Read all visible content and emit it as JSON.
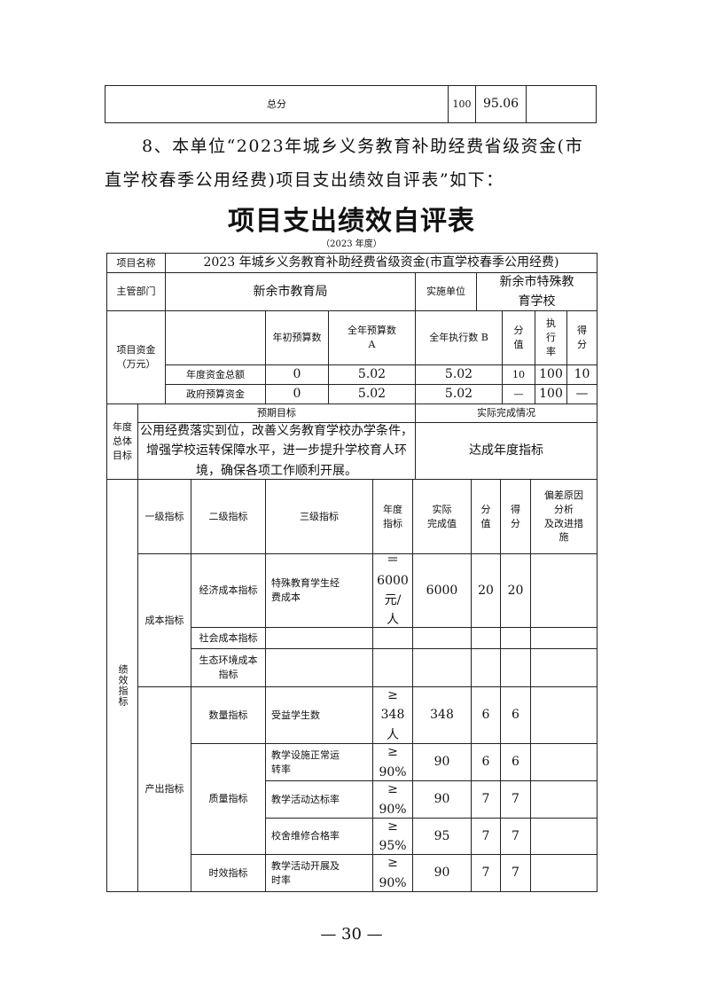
{
  "summary_table": {
    "label": "总分",
    "score_value": "100",
    "score_obtained": "95.06",
    "remark": ""
  },
  "paragraph": {
    "line1": "8、本单位“2023年城乡义务教育补助经费省级资金(市",
    "line2": "直学校春季公用经费)项目支出绩效自评表”如下："
  },
  "title": "项目支出绩效自评表",
  "year_label": "（2023 年度）",
  "table": {
    "project_name_label": "项目名称",
    "project_name": "2023 年城乡义务教育补助经费省级资金(市直学校春季公用经费)",
    "dept_label": "主管部门",
    "dept": "新余市教育局",
    "impl_label": "实施单位",
    "impl": "新余市特殊教\n育学校",
    "funds_label": "项目资金\n（万元）",
    "funds_headers": [
      "",
      "年初预算数",
      "全年预算数\nA",
      "全年执行数 B",
      "分\n值",
      "执\n行\n率",
      "得\n分"
    ],
    "funds_rows": [
      [
        "年度资金总额",
        "0",
        "5.02",
        "5.02",
        "10",
        "100",
        "10"
      ],
      [
        "政府预算资金",
        "0",
        "5.02",
        "5.02",
        "—",
        "100",
        "—"
      ]
    ],
    "goal_label": "年度\n总体\n目标",
    "goal_expected_label": "预期目标",
    "goal_actual_label": "实际完成情况",
    "goal_expected": "公用经费落实到位，改善义务教育学校办学条件，增强学校运转保障水平，进一步提升学校育人环境，确保各项工作顺利开展。",
    "goal_actual": "达成年度指标",
    "perf_label": "绩效指标",
    "perf_headers": [
      "一级指标",
      "二级指标",
      "三级指标",
      "年度\n指标",
      "实际\n完成值",
      "分\n值",
      "得\n分",
      "偏差原因\n分析\n及改进措\n施"
    ],
    "level1": [
      "成本指标",
      "产出指标"
    ],
    "level2": [
      "经济成本指标",
      "社会成本指标",
      "生态环境成本\n指标",
      "数量指标",
      "质量指标",
      "时效指标"
    ],
    "rows": [
      {
        "level3": "特殊教育学生经\n费成本",
        "target": "＝\n6000\n元/\n人",
        "actual": "6000",
        "weight": "20",
        "score": "20",
        "note": ""
      },
      {
        "level3": "",
        "target": "",
        "actual": "",
        "weight": "",
        "score": "",
        "note": ""
      },
      {
        "level3": "",
        "target": "",
        "actual": "",
        "weight": "",
        "score": "",
        "note": ""
      },
      {
        "level3": "受益学生数",
        "target": "≥\n348\n人",
        "actual": "348",
        "weight": "6",
        "score": "6",
        "note": ""
      },
      {
        "level3": "教学设施正常运\n转率",
        "target": "≥\n90%",
        "actual": "90",
        "weight": "6",
        "score": "6",
        "note": ""
      },
      {
        "level3": "教学活动达标率",
        "target": "≥\n90%",
        "actual": "90",
        "weight": "7",
        "score": "7",
        "note": ""
      },
      {
        "level3": "校舍维修合格率",
        "target": "≥\n95%",
        "actual": "95",
        "weight": "7",
        "score": "7",
        "note": ""
      },
      {
        "level3": "教学活动开展及\n时率",
        "target": "≥\n90%",
        "actual": "90",
        "weight": "7",
        "score": "7",
        "note": ""
      }
    ]
  },
  "page_number": "— 30 —"
}
